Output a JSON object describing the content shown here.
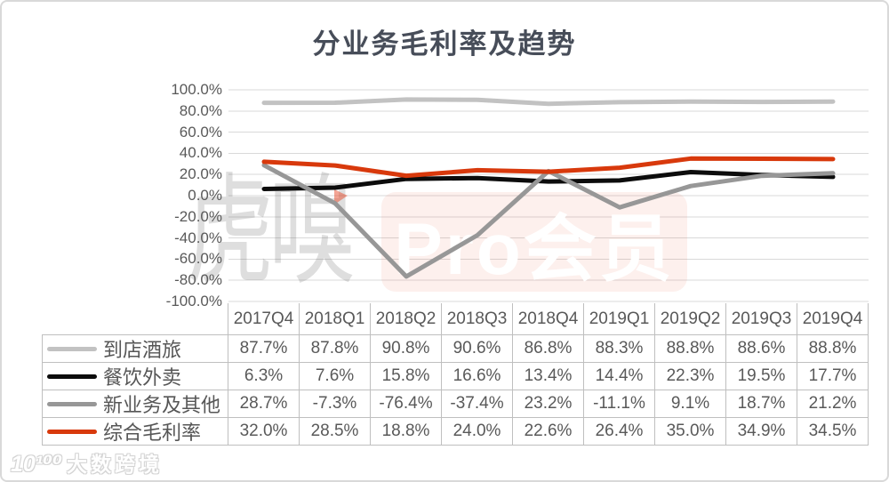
{
  "title": "分业务毛利率及趋势",
  "watermark": {
    "gray_text": "虎嗅",
    "badge_text": "Pro会员",
    "badge_bg": "#f8ede9",
    "badge_text_color": "#ffffff",
    "accent_color": "#e7492a"
  },
  "brand": {
    "icon_text": "10¹⁰⁰",
    "name": "大数跨境"
  },
  "chart_data": {
    "type": "line",
    "title": "分业务毛利率及趋势",
    "categories": [
      "2017Q4",
      "2018Q1",
      "2018Q2",
      "2018Q3",
      "2018Q4",
      "2019Q1",
      "2019Q2",
      "2019Q3",
      "2019Q4"
    ],
    "series": [
      {
        "name": "到店酒旅",
        "color": "#c2c2c2",
        "values": [
          87.7,
          87.8,
          90.8,
          90.6,
          86.8,
          88.3,
          88.8,
          88.6,
          88.8
        ],
        "labels": [
          "87.7%",
          "87.8%",
          "90.8%",
          "90.6%",
          "86.8%",
          "88.3%",
          "88.8%",
          "88.6%",
          "88.8%"
        ]
      },
      {
        "name": "餐饮外卖",
        "color": "#0c0c0c",
        "values": [
          6.3,
          7.6,
          15.8,
          16.6,
          13.4,
          14.4,
          22.3,
          19.5,
          17.7
        ],
        "labels": [
          "6.3%",
          "7.6%",
          "15.8%",
          "16.6%",
          "13.4%",
          "14.4%",
          "22.3%",
          "19.5%",
          "17.7%"
        ]
      },
      {
        "name": "新业务及其他",
        "color": "#979797",
        "values": [
          28.7,
          -7.3,
          -76.4,
          -37.4,
          23.2,
          -11.1,
          9.1,
          18.7,
          21.2
        ],
        "labels": [
          "28.7%",
          "-7.3%",
          "-76.4%",
          "-37.4%",
          "23.2%",
          "-11.1%",
          "9.1%",
          "18.7%",
          "21.2%"
        ]
      },
      {
        "name": "综合毛利率",
        "color": "#d8390c",
        "values": [
          32.0,
          28.5,
          18.8,
          24.0,
          22.6,
          26.4,
          35.0,
          34.9,
          34.5
        ],
        "labels": [
          "32.0%",
          "28.5%",
          "18.8%",
          "24.0%",
          "22.6%",
          "26.4%",
          "35.0%",
          "34.9%",
          "34.5%"
        ]
      }
    ],
    "ylim": [
      -100,
      100
    ],
    "y_tick_step": 20,
    "y_tick_values": [
      100,
      80,
      60,
      40,
      20,
      0,
      -20,
      -40,
      -60,
      -80,
      -100
    ],
    "y_tick_labels": [
      "100.0%",
      "80.0%",
      "60.0%",
      "40.0%",
      "20.0%",
      "0.0%",
      "-20.0%",
      "-40.0%",
      "-60.0%",
      "-80.0%",
      "-100.0%"
    ],
    "grid": true,
    "gridline_color": "#d9d9d9",
    "legend_position": "table-left",
    "xlabel": "",
    "ylabel": ""
  }
}
